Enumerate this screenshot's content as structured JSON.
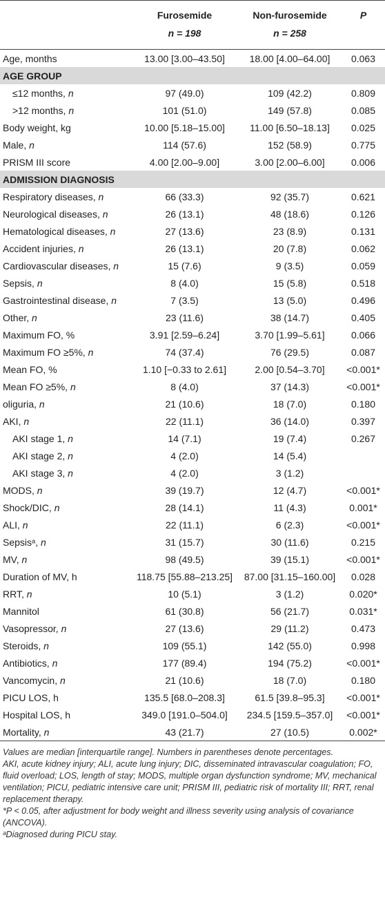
{
  "header": {
    "col1": "Furosemide",
    "col1_n": "n = 198",
    "col2": "Non-furosemide",
    "col2_n": "n = 258",
    "col3": "P"
  },
  "rows": [
    {
      "label": "Age, months",
      "furosemide": "13.00 [3.00–43.50]",
      "non_furosemide": "18.00 [4.00–64.00]",
      "p": "0.063"
    },
    {
      "section": "AGE GROUP"
    },
    {
      "label": "≤12 months, n",
      "indent": true,
      "furosemide": "97 (49.0)",
      "non_furosemide": "109 (42.2)",
      "p": "0.809"
    },
    {
      "label": ">12 months, n",
      "indent": true,
      "furosemide": "101 (51.0)",
      "non_furosemide": "149 (57.8)",
      "p": "0.085"
    },
    {
      "label": "Body weight, kg",
      "furosemide": "10.00 [5.18–15.00]",
      "non_furosemide": "11.00 [6.50–18.13]",
      "p": "0.025"
    },
    {
      "label": "Male, n",
      "furosemide": "114 (57.6)",
      "non_furosemide": "152 (58.9)",
      "p": "0.775"
    },
    {
      "label": "PRISM III score",
      "furosemide": "4.00 [2.00–9.00]",
      "non_furosemide": "3.00 [2.00–6.00]",
      "p": "0.006"
    },
    {
      "section": "ADMISSION DIAGNOSIS"
    },
    {
      "label": "Respiratory diseases, n",
      "furosemide": "66 (33.3)",
      "non_furosemide": "92 (35.7)",
      "p": "0.621"
    },
    {
      "label": "Neurological diseases, n",
      "furosemide": "26 (13.1)",
      "non_furosemide": "48 (18.6)",
      "p": "0.126"
    },
    {
      "label": "Hematological diseases, n",
      "furosemide": "27 (13.6)",
      "non_furosemide": "23 (8.9)",
      "p": "0.131"
    },
    {
      "label": "Accident injuries, n",
      "furosemide": "26 (13.1)",
      "non_furosemide": "20 (7.8)",
      "p": "0.062"
    },
    {
      "label": "Cardiovascular diseases, n",
      "furosemide": "15 (7.6)",
      "non_furosemide": "9 (3.5)",
      "p": "0.059"
    },
    {
      "label": "Sepsis, n",
      "furosemide": "8 (4.0)",
      "non_furosemide": "15 (5.8)",
      "p": "0.518"
    },
    {
      "label": "Gastrointestinal disease, n",
      "furosemide": "7 (3.5)",
      "non_furosemide": "13 (5.0)",
      "p": "0.496"
    },
    {
      "label": "Other, n",
      "furosemide": "23 (11.6)",
      "non_furosemide": "38 (14.7)",
      "p": "0.405"
    },
    {
      "label": "Maximum FO, %",
      "furosemide": "3.91 [2.59–6.24]",
      "non_furosemide": "3.70 [1.99–5.61]",
      "p": "0.066"
    },
    {
      "label": "Maximum FO ≥5%, n",
      "furosemide": "74 (37.4)",
      "non_furosemide": "76 (29.5)",
      "p": "0.087"
    },
    {
      "label": "Mean FO, %",
      "furosemide": "1.10 [−0.33 to 2.61]",
      "non_furosemide": "2.00 [0.54–3.70]",
      "p": "<0.001*"
    },
    {
      "label": "Mean FO ≥5%, n",
      "furosemide": "8 (4.0)",
      "non_furosemide": "37 (14.3)",
      "p": "<0.001*"
    },
    {
      "label": "oliguria, n",
      "furosemide": "21 (10.6)",
      "non_furosemide": "18 (7.0)",
      "p": "0.180"
    },
    {
      "label": "AKI, n",
      "furosemide": "22 (11.1)",
      "non_furosemide": "36 (14.0)",
      "p": "0.397"
    },
    {
      "label": "AKI stage 1, n",
      "indent": true,
      "furosemide": "14 (7.1)",
      "non_furosemide": "19 (7.4)",
      "p": "0.267"
    },
    {
      "label": "AKI stage 2, n",
      "indent": true,
      "furosemide": "4 (2.0)",
      "non_furosemide": "14 (5.4)",
      "p": null
    },
    {
      "label": "AKI stage 3, n",
      "indent": true,
      "furosemide": "4 (2.0)",
      "non_furosemide": "3 (1.2)",
      "p": null
    },
    {
      "label": "MODS, n",
      "furosemide": "39 (19.7)",
      "non_furosemide": "12 (4.7)",
      "p": "<0.001*"
    },
    {
      "label": "Shock/DIC, n",
      "furosemide": "28 (14.1)",
      "non_furosemide": "11 (4.3)",
      "p": "0.001*"
    },
    {
      "label": "ALI, n",
      "furosemide": "22 (11.1)",
      "non_furosemide": "6 (2.3)",
      "p": "<0.001*"
    },
    {
      "label": "Sepsisᵃ, n",
      "furosemide": "31 (15.7)",
      "non_furosemide": "30 (11.6)",
      "p": "0.215"
    },
    {
      "label": "MV, n",
      "furosemide": "98 (49.5)",
      "non_furosemide": "39 (15.1)",
      "p": "<0.001*"
    },
    {
      "label": "Duration of MV, h",
      "furosemide": "118.75 [55.88–213.25]",
      "non_furosemide": "87.00 [31.15–160.00]",
      "p": "0.028"
    },
    {
      "label": "RRT, n",
      "furosemide": "10 (5.1)",
      "non_furosemide": "3 (1.2)",
      "p": "0.020*"
    },
    {
      "label": "Mannitol",
      "furosemide": "61 (30.8)",
      "non_furosemide": "56 (21.7)",
      "p": "0.031*"
    },
    {
      "label": "Vasopressor, n",
      "furosemide": "27 (13.6)",
      "non_furosemide": "29 (11.2)",
      "p": "0.473"
    },
    {
      "label": "Steroids, n",
      "furosemide": "109 (55.1)",
      "non_furosemide": "142 (55.0)",
      "p": "0.998"
    },
    {
      "label": "Antibiotics, n",
      "furosemide": "177 (89.4)",
      "non_furosemide": "194 (75.2)",
      "p": "<0.001*"
    },
    {
      "label": "Vancomycin, n",
      "furosemide": "21 (10.6)",
      "non_furosemide": "18 (7.0)",
      "p": "0.180"
    },
    {
      "label": "PICU LOS, h",
      "furosemide": "135.5 [68.0–208.3]",
      "non_furosemide": "61.5 [39.8–95.3]",
      "p": "<0.001*"
    },
    {
      "label": "Hospital LOS, h",
      "furosemide": "349.0 [191.0–504.0]",
      "non_furosemide": "234.5 [159.5–357.0]",
      "p": "<0.001*"
    },
    {
      "label": "Mortality, n",
      "furosemide": "43 (21.7)",
      "non_furosemide": "27 (10.5)",
      "p": "0.002*"
    }
  ],
  "footnotes": [
    "Values are median [interquartile range]. Numbers in parentheses denote percentages.",
    "AKI, acute kidney injury; ALI, acute lung injury; DIC, disseminated intravascular coagulation; FO, fluid overload; LOS, length of stay; MODS, multiple organ dysfunction syndrome; MV, mechanical ventilation; PICU, pediatric intensive care unit; PRISM III, pediatric risk of mortality III; RRT, renal replacement therapy.",
    "*P < 0.05, after adjustment for body weight and illness severity using analysis of covariance (ANCOVA).",
    "ᵃDiagnosed during PICU stay."
  ]
}
